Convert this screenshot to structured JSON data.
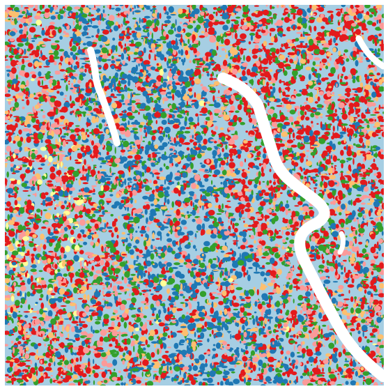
{
  "map": {
    "base_color": "#a6cee3",
    "palette": [
      "#1f78b4",
      "#e31a1c",
      "#fb9a99",
      "#fdbf6f",
      "#33a02c",
      "#ffff99"
    ]
  }
}
